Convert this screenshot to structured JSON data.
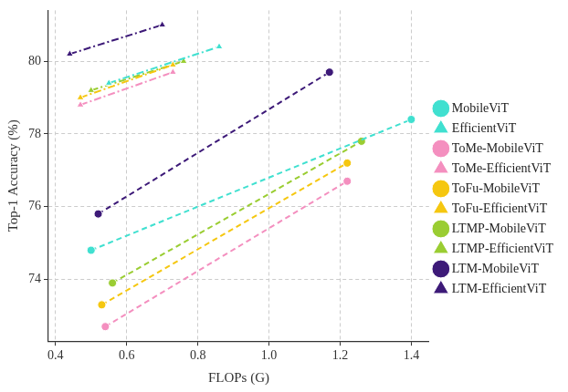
{
  "chart_data": {
    "type": "line",
    "x_label": "FLOPs (G)",
    "y_label": "Top-1 Accuracy (%)",
    "xlim": [
      0.38,
      1.45
    ],
    "xticks": [
      0.4,
      0.6,
      0.8,
      {
        "value": 1,
        "label": "1.0"
      },
      1.2,
      1.4
    ],
    "ylim": [
      72.3,
      81.4
    ],
    "yticks": [
      74,
      76,
      78,
      80
    ],
    "grid": true,
    "legend": "right",
    "series": [
      {
        "name": "MobileViT",
        "color": "#40E0D0",
        "marker": "circle",
        "line_style": "dashed",
        "x": [
          0.5,
          1.4
        ],
        "values": [
          74.8,
          78.4
        ]
      },
      {
        "name": "EfficientViT",
        "color": "#40E0D0",
        "marker": "triangle",
        "line_style": "dashdot",
        "x": [
          0.55,
          0.86
        ],
        "values": [
          79.4,
          80.4
        ]
      },
      {
        "name": "ToMe-MobileViT",
        "color": "#F48FBF",
        "marker": "circle",
        "line_style": "dashed",
        "x": [
          0.54,
          1.22
        ],
        "values": [
          72.7,
          76.7
        ]
      },
      {
        "name": "ToMe-EfficientViT",
        "color": "#F48FBF",
        "marker": "triangle",
        "line_style": "dashdot",
        "x": [
          0.47,
          0.73
        ],
        "values": [
          78.8,
          79.7
        ]
      },
      {
        "name": "ToFu-MobileViT",
        "color": "#F5C710",
        "marker": "circle",
        "line_style": "dashed",
        "x": [
          0.53,
          1.22
        ],
        "values": [
          73.3,
          77.2
        ]
      },
      {
        "name": "ToFu-EfficientViT",
        "color": "#F5C710",
        "marker": "triangle",
        "line_style": "dashdot",
        "x": [
          0.47,
          0.73
        ],
        "values": [
          79.0,
          79.9
        ]
      },
      {
        "name": "LTMP-MobileViT",
        "color": "#9ACD32",
        "marker": "circle",
        "line_style": "dashed",
        "x": [
          0.56,
          1.26
        ],
        "values": [
          73.9,
          77.8
        ]
      },
      {
        "name": "LTMP-EfficientViT",
        "color": "#9ACD32",
        "marker": "triangle",
        "line_style": "dashdot",
        "x": [
          0.5,
          0.76
        ],
        "values": [
          79.2,
          80.0
        ]
      },
      {
        "name": "LTM-MobileViT",
        "color": "#3D1A78",
        "marker": "circle",
        "line_style": "dashed",
        "x": [
          0.52,
          1.17
        ],
        "values": [
          75.8,
          79.7
        ]
      },
      {
        "name": "LTM-EfficientViT",
        "color": "#3D1A78",
        "marker": "triangle",
        "line_style": "dashdot",
        "x": [
          0.44,
          0.7
        ],
        "values": [
          80.2,
          81.0
        ]
      }
    ]
  }
}
